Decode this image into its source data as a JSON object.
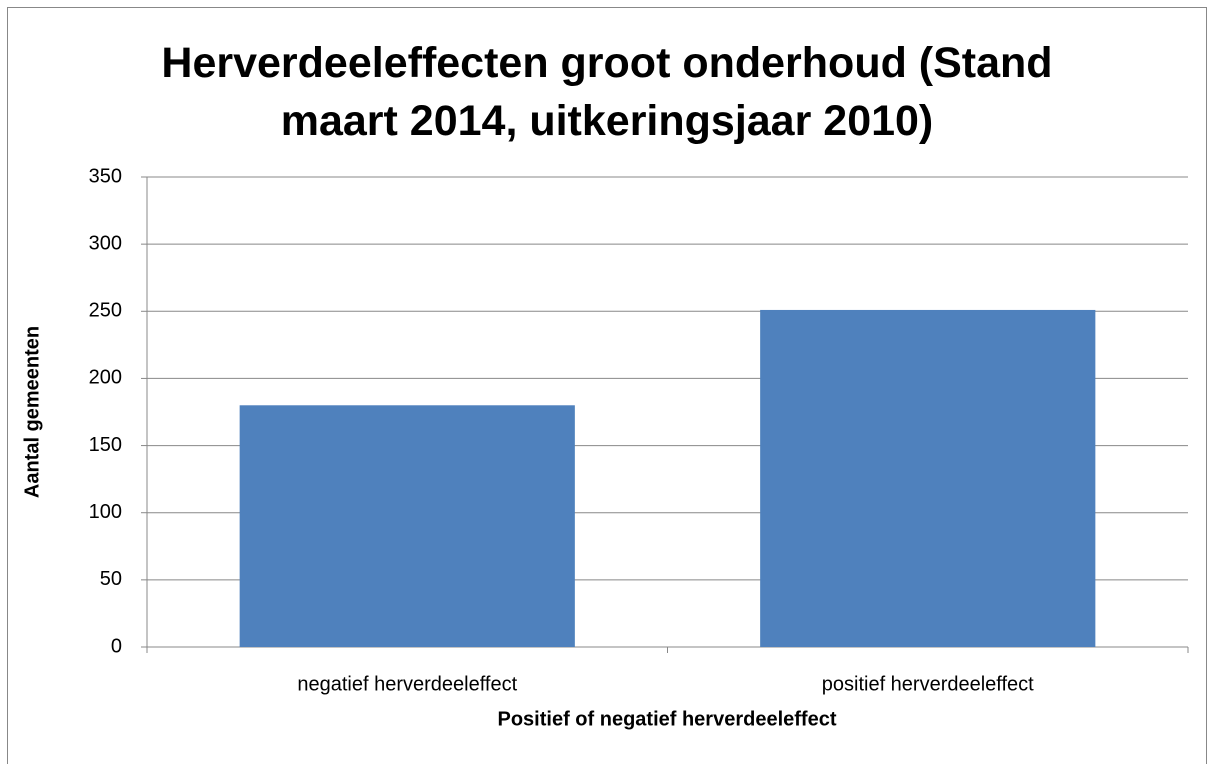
{
  "chart_data": {
    "type": "bar",
    "title": "Herverdeeleffecten groot onderhoud (Stand maart 2014, uitkeringsjaar 2010)",
    "categories": [
      "negatief herverdeeleffect",
      "positief herverdeeleffect"
    ],
    "values": [
      180,
      251
    ],
    "color": "#4f81bd",
    "xlabel": "Positief of negatief herverdeeleffect",
    "ylabel": "Aantal gemeenten",
    "ylim": [
      0,
      350
    ],
    "yticks": [
      0,
      50,
      100,
      150,
      200,
      250,
      300,
      350
    ],
    "grid": true
  }
}
